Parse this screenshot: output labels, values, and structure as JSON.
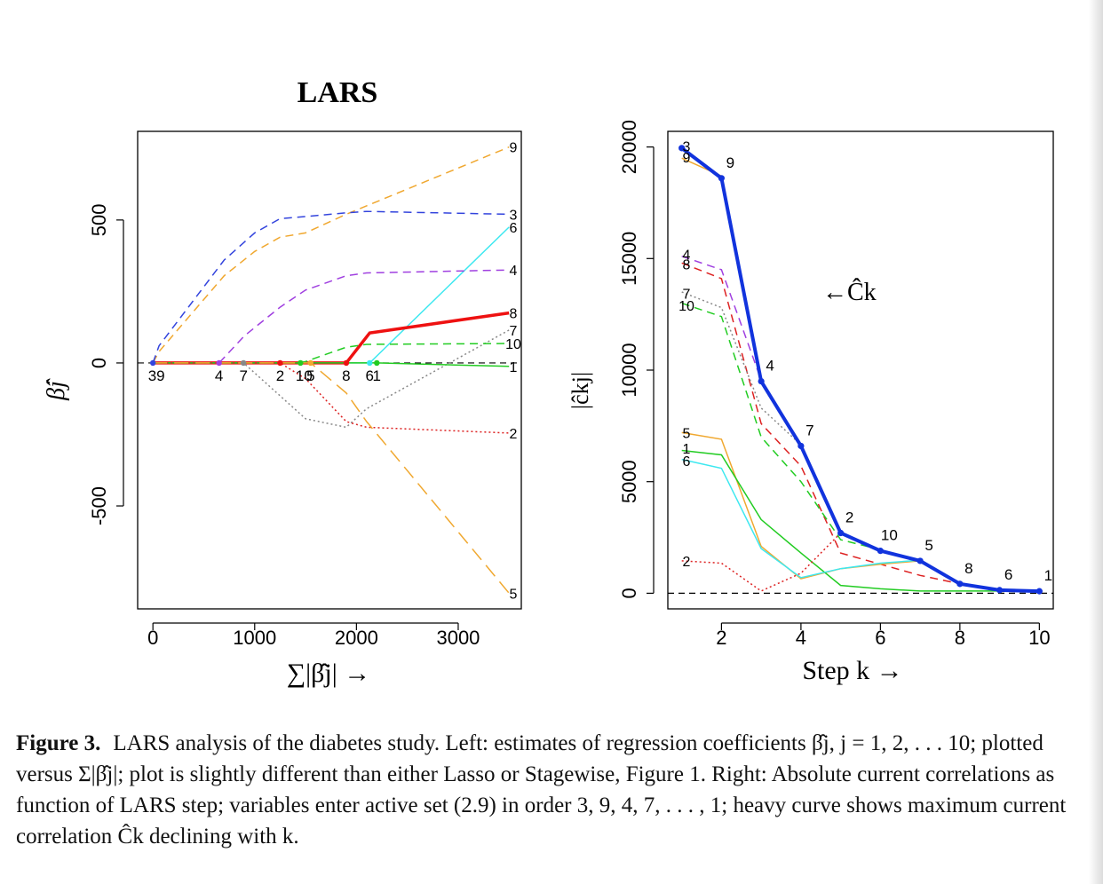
{
  "figure": {
    "caption_label": "Figure 3.",
    "caption_text": "LARS analysis of the diabetes study. Left: estimates of regression coefficients β̂j, j = 1, 2, . . . 10; plotted versus Σ|β̂j|; plot is slightly different than either Lasso or Stagewise, Figure 1. Right: Absolute current correlations as function of LARS step; variables enter active set (2.9) in order 3, 9, 4, 7, . . . , 1; heavy curve shows maximum current correlation Ĉk declining with k."
  },
  "chart_data": [
    {
      "type": "line",
      "title": "LARS",
      "xlabel": "∑|β̂j| →",
      "ylabel": "β̂j",
      "xlim": [
        -150,
        3620
      ],
      "ylim": [
        -860,
        810
      ],
      "xticks": [
        0,
        1000,
        2000,
        3000
      ],
      "yticks": [
        -500,
        0,
        500
      ],
      "grid": false,
      "legend": "none",
      "zero_line": 0,
      "series": [
        {
          "name": "9",
          "color": "#f0a830",
          "style": "dashed",
          "x": [
            0,
            60,
            700,
            1000,
            1250,
            1500,
            1900,
            3500
          ],
          "y": [
            0,
            40,
            305,
            390,
            440,
            455,
            520,
            755
          ]
        },
        {
          "name": "3",
          "color": "#3344dd",
          "style": "dashed",
          "x": [
            0,
            60,
            700,
            1000,
            1250,
            1500,
            1900,
            2100,
            3500
          ],
          "y": [
            0,
            60,
            360,
            455,
            505,
            512,
            525,
            530,
            520
          ]
        },
        {
          "name": "6",
          "color": "#3de8f0",
          "style": "solid",
          "x": [
            0,
            2130,
            3500
          ],
          "y": [
            0,
            0,
            475
          ]
        },
        {
          "name": "4",
          "color": "#a040e0",
          "style": "dashed",
          "x": [
            0,
            650,
            900,
            1250,
            1500,
            1900,
            2100,
            3500
          ],
          "y": [
            0,
            0,
            95,
            195,
            255,
            305,
            315,
            325
          ]
        },
        {
          "name": "8",
          "color": "#ee1111",
          "style": "solid",
          "width": 3.5,
          "x": [
            0,
            1900,
            2130,
            3500
          ],
          "y": [
            0,
            0,
            105,
            175
          ]
        },
        {
          "name": "7",
          "color": "#888888",
          "style": "dotted",
          "x": [
            0,
            890,
            1250,
            1500,
            1900,
            2100,
            3500
          ],
          "y": [
            0,
            0,
            -115,
            -195,
            -225,
            -160,
            115
          ]
        },
        {
          "name": "10",
          "color": "#22cc22",
          "style": "dashed",
          "x": [
            0,
            1450,
            1500,
            1900,
            2100,
            3500
          ],
          "y": [
            0,
            0,
            5,
            55,
            65,
            68
          ]
        },
        {
          "name": "1",
          "color": "#22cc22",
          "style": "solid",
          "x": [
            0,
            2200,
            3500
          ],
          "y": [
            0,
            0,
            -12
          ]
        },
        {
          "name": "2",
          "color": "#dd2222",
          "style": "dotted",
          "x": [
            0,
            1250,
            1500,
            1900,
            2100,
            3500
          ],
          "y": [
            0,
            0,
            -55,
            -205,
            -225,
            -245
          ]
        },
        {
          "name": "5",
          "color": "#f0a830",
          "style": "longdash",
          "x": [
            0,
            1550,
            1900,
            2100,
            3500
          ],
          "y": [
            0,
            0,
            -105,
            -205,
            -805
          ]
        }
      ],
      "entry_points": [
        {
          "label": "39",
          "x": 0,
          "color": "#3344dd"
        },
        {
          "label": "4",
          "x": 650,
          "color": "#a040e0"
        },
        {
          "label": "7",
          "x": 890,
          "color": "#888888"
        },
        {
          "label": "2",
          "x": 1250,
          "color": "#ee1111"
        },
        {
          "label": "10",
          "x": 1450,
          "color": "#22cc22"
        },
        {
          "label": "5",
          "x": 1550,
          "color": "#f0a830"
        },
        {
          "label": "8",
          "x": 1900,
          "color": "#ee1111"
        },
        {
          "label": "6",
          "x": 2130,
          "color": "#3de8f0"
        },
        {
          "label": "1",
          "x": 2200,
          "color": "#22cc22"
        }
      ]
    },
    {
      "type": "line",
      "title": "",
      "xlabel": "Step k →",
      "ylabel": "|ĉkj|",
      "xlim": [
        0.65,
        10.35
      ],
      "ylim": [
        -700,
        20700
      ],
      "xticks": [
        2,
        4,
        6,
        8,
        10
      ],
      "yticks": [
        0,
        5000,
        10000,
        15000,
        20000
      ],
      "grid": false,
      "legend": "none",
      "zero_line": 0,
      "annotation": "←Ĉk",
      "series": [
        {
          "name": "9",
          "color": "#f0a830",
          "style": "solid",
          "x": [
            1,
            2
          ],
          "y": [
            19500,
            18700
          ]
        },
        {
          "name": "4",
          "color": "#a040e0",
          "style": "dashed",
          "x": [
            1,
            2,
            3
          ],
          "y": [
            15100,
            14500,
            9550
          ]
        },
        {
          "name": "8",
          "color": "#dd2222",
          "style": "dashed",
          "x": [
            1,
            2,
            3,
            4,
            5,
            6,
            7,
            8
          ],
          "y": [
            14800,
            14100,
            7600,
            5700,
            1800,
            1300,
            800,
            420
          ]
        },
        {
          "name": "7",
          "color": "#888888",
          "style": "dotted",
          "x": [
            1,
            2,
            3,
            4
          ],
          "y": [
            13500,
            12800,
            8300,
            6650
          ]
        },
        {
          "name": "10",
          "color": "#22cc22",
          "style": "dashed",
          "x": [
            1,
            2,
            3,
            4,
            5,
            6
          ],
          "y": [
            13000,
            12400,
            7000,
            5000,
            2400,
            1950
          ]
        },
        {
          "name": "5",
          "color": "#f0a830",
          "style": "solid",
          "x": [
            1,
            2,
            3,
            4,
            5,
            6,
            7
          ],
          "y": [
            7200,
            6900,
            2100,
            650,
            1100,
            1300,
            1450
          ]
        },
        {
          "name": "1",
          "color": "#22cc22",
          "style": "solid",
          "x": [
            1,
            2,
            3,
            4,
            5,
            6,
            7,
            8,
            9,
            10
          ],
          "y": [
            6400,
            6200,
            3300,
            1800,
            350,
            200,
            100,
            100,
            100,
            90
          ]
        },
        {
          "name": "6",
          "color": "#3de8f0",
          "style": "solid",
          "x": [
            1,
            2,
            3,
            4,
            5,
            6,
            7,
            8,
            9
          ],
          "y": [
            6000,
            5600,
            2000,
            700,
            1100,
            1350,
            1480,
            460,
            140
          ]
        },
        {
          "name": "2",
          "color": "#dd2222",
          "style": "dotted",
          "x": [
            1,
            2,
            3,
            4,
            5
          ],
          "y": [
            1450,
            1350,
            100,
            900,
            2700
          ]
        },
        {
          "name": "Ĉk",
          "color": "#1133dd",
          "style": "solid",
          "width": 4,
          "markers": true,
          "x": [
            1,
            2,
            3,
            4,
            5,
            6,
            7,
            8,
            9,
            10
          ],
          "y": [
            19950,
            18600,
            9500,
            6600,
            2700,
            1900,
            1450,
            420,
            140,
            90
          ]
        }
      ],
      "start_labels": [
        {
          "label": "3",
          "y": 20050
        },
        {
          "label": "9",
          "y": 19550
        },
        {
          "label": "4",
          "y": 15200
        },
        {
          "label": "8",
          "y": 14750
        },
        {
          "label": "7",
          "y": 13450
        },
        {
          "label": "10",
          "y": 12900
        },
        {
          "label": "5",
          "y": 7200
        },
        {
          "label": "1",
          "y": 6500
        },
        {
          "label": "6",
          "y": 5950
        },
        {
          "label": "2",
          "y": 1450
        }
      ],
      "step_labels": [
        {
          "label": "9",
          "k": 2
        },
        {
          "label": "4",
          "k": 3
        },
        {
          "label": "7",
          "k": 4
        },
        {
          "label": "2",
          "k": 5
        },
        {
          "label": "10",
          "k": 6
        },
        {
          "label": "5",
          "k": 7
        },
        {
          "label": "8",
          "k": 8
        },
        {
          "label": "6",
          "k": 9
        },
        {
          "label": "1",
          "k": 10
        }
      ]
    }
  ]
}
